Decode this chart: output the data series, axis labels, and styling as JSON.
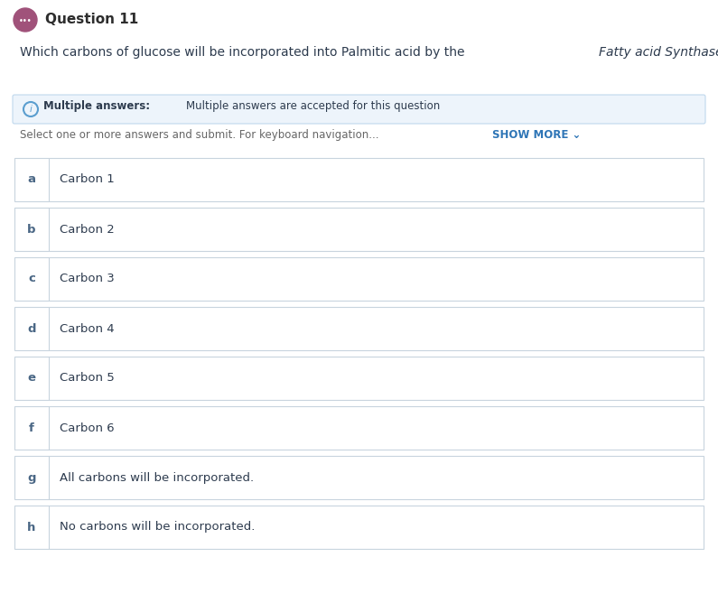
{
  "title": "Question 11",
  "question_text_normal": "Which carbons of glucose will be incorporated into Palmitic acid by the ",
  "question_text_italic": "Fatty acid Synthase",
  "question_text_end": "?",
  "info_bold": "Multiple answers: ",
  "info_normal": "Multiple answers are accepted for this question",
  "select_text": "Select one or more answers and submit. For keyboard navigation...",
  "show_more": "SHOW MORE ⌄",
  "options": [
    {
      "label": "a",
      "text": "Carbon 1"
    },
    {
      "label": "b",
      "text": "Carbon 2"
    },
    {
      "label": "c",
      "text": "Carbon 3"
    },
    {
      "label": "d",
      "text": "Carbon 4"
    },
    {
      "label": "e",
      "text": "Carbon 5"
    },
    {
      "label": "f",
      "text": "Carbon 6"
    },
    {
      "label": "g",
      "text": "All carbons will be incorporated."
    },
    {
      "label": "h",
      "text": "No carbons will be incorporated."
    }
  ],
  "bg_color": "#ffffff",
  "option_bg": "#ffffff",
  "option_border": "#c8d4de",
  "option_label_color": "#4a6785",
  "option_text_color": "#2d3b4e",
  "info_bg": "#edf4fb",
  "info_border": "#c0d8ed",
  "info_icon_color": "#5b9ecf",
  "title_color": "#2d2d2d",
  "question_color": "#2d3b4e",
  "icon_bg": "#a0527a",
  "show_more_color": "#2e75b6",
  "select_text_color": "#666666",
  "font_size_title": 11,
  "font_size_question": 10,
  "font_size_info": 8.5,
  "font_size_option": 9.5
}
